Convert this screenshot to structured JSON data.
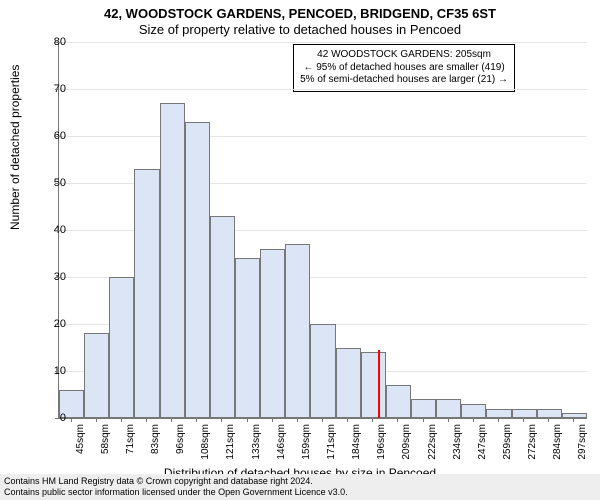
{
  "title_main": "42, WOODSTOCK GARDENS, PENCOED, BRIDGEND, CF35 6ST",
  "title_sub": "Size of property relative to detached houses in Pencoed",
  "y_label": "Number of detached properties",
  "x_label": "Distribution of detached houses by size in Pencoed",
  "chart": {
    "type": "histogram",
    "ymax": 80,
    "ytick_step": 10,
    "bar_fill": "#dbe5f5",
    "bar_border": "#777777",
    "grid_color": "#e5e5e5",
    "axis_color": "#777777",
    "background": "#ffffff",
    "marker_color": "#ff0000",
    "x_labels": [
      "45sqm",
      "58sqm",
      "71sqm",
      "83sqm",
      "96sqm",
      "108sqm",
      "121sqm",
      "133sqm",
      "146sqm",
      "159sqm",
      "171sqm",
      "184sqm",
      "196sqm",
      "209sqm",
      "222sqm",
      "234sqm",
      "247sqm",
      "259sqm",
      "272sqm",
      "284sqm",
      "297sqm"
    ],
    "values": [
      6,
      18,
      30,
      53,
      67,
      63,
      43,
      34,
      36,
      37,
      20,
      15,
      14,
      7,
      4,
      4,
      3,
      2,
      2,
      2,
      1
    ],
    "marker_index": 12.7
  },
  "callout": {
    "l1": "42 WOODSTOCK GARDENS: 205sqm",
    "l2": "← 95% of detached houses are smaller (419)",
    "l3": "5% of semi-detached houses are larger (21) →"
  },
  "footer": {
    "l1": "Contains HM Land Registry data © Crown copyright and database right 2024.",
    "l2": "Contains public sector information licensed under the Open Government Licence v3.0."
  }
}
